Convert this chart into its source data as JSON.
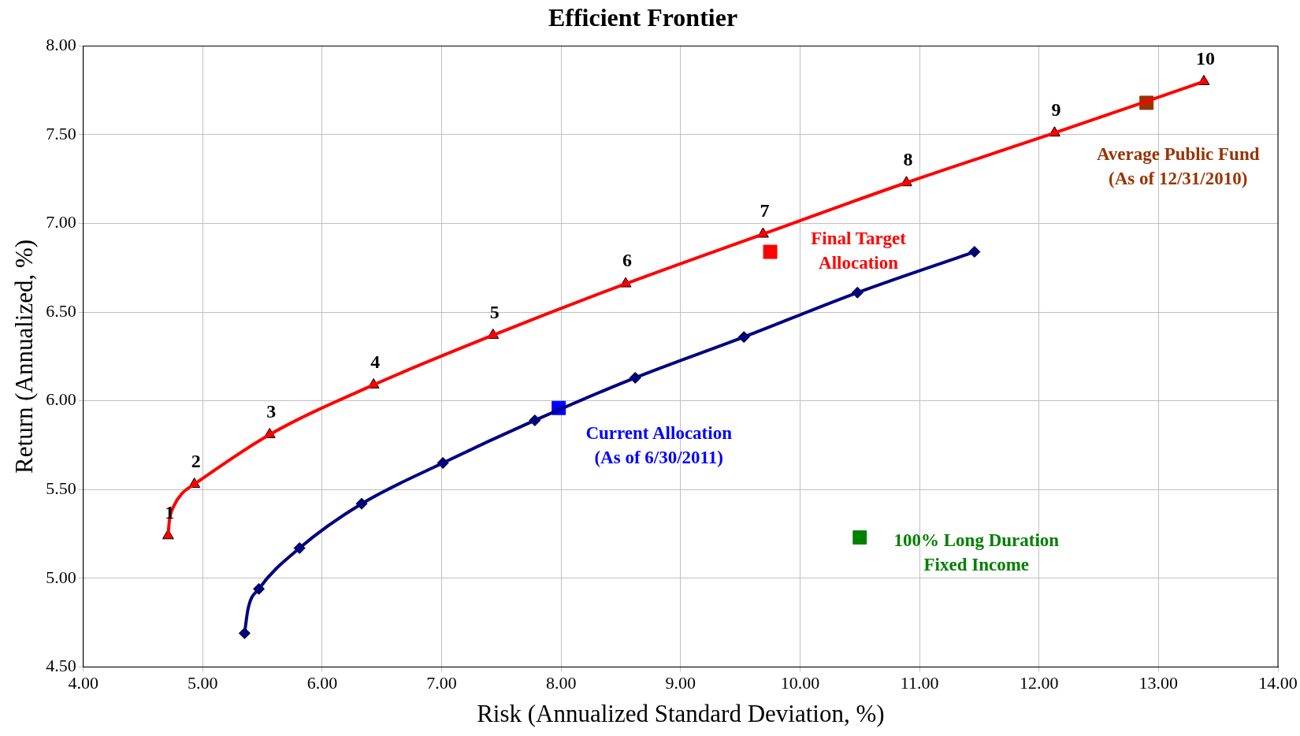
{
  "chart_data": {
    "type": "line",
    "title": "Efficient Frontier",
    "xlabel": "Risk (Annualized Standard Deviation, %)",
    "ylabel": "Return (Annualized, %)",
    "xlim": [
      4,
      14
    ],
    "xticks": [
      {
        "value": 4,
        "label": "4.00"
      },
      {
        "value": 5,
        "label": "5.00"
      },
      {
        "value": 6,
        "label": "6.00"
      },
      {
        "value": 7,
        "label": "7.00"
      },
      {
        "value": 8,
        "label": "8.00"
      },
      {
        "value": 9,
        "label": "9.00"
      },
      {
        "value": 10,
        "label": "10.00"
      },
      {
        "value": 11,
        "label": "11.00"
      },
      {
        "value": 12,
        "label": "12.00"
      },
      {
        "value": 13,
        "label": "13.00"
      },
      {
        "value": 14,
        "label": "14.00"
      }
    ],
    "ylim": [
      4.5,
      8
    ],
    "yticks": [
      {
        "value": 4.5,
        "label": "4.50"
      },
      {
        "value": 5,
        "label": "5.00"
      },
      {
        "value": 5.5,
        "label": "5.50"
      },
      {
        "value": 6,
        "label": "6.00"
      },
      {
        "value": 6.5,
        "label": "6.50"
      },
      {
        "value": 7,
        "label": "7.00"
      },
      {
        "value": 7.5,
        "label": "7.50"
      },
      {
        "value": 8,
        "label": "8.00"
      }
    ],
    "grid": true,
    "legend": false,
    "line_style": "solid",
    "annotations": [
      {
        "text": "1",
        "x": 4.71,
        "y": 5.24
      },
      {
        "text": "2",
        "x": 4.93,
        "y": 5.53
      },
      {
        "text": "3",
        "x": 5.56,
        "y": 5.81
      },
      {
        "text": "4",
        "x": 6.43,
        "y": 6.09
      },
      {
        "text": "5",
        "x": 7.43,
        "y": 6.37
      },
      {
        "text": "6",
        "x": 8.54,
        "y": 6.66
      },
      {
        "text": "7",
        "x": 9.69,
        "y": 6.94
      },
      {
        "text": "8",
        "x": 10.89,
        "y": 7.23
      },
      {
        "text": "9",
        "x": 12.13,
        "y": 7.51
      },
      {
        "text": "10",
        "x": 13.38,
        "y": 7.8
      }
    ],
    "series": [
      {
        "type": "line",
        "marker": "none",
        "color": "#ff0000",
        "x": [
          4.71,
          4.72,
          4.76,
          4.83,
          4.93,
          5.56,
          6.43,
          7.43,
          8.54,
          9.69,
          10.89,
          12.13,
          13.38
        ],
        "values": [
          5.24,
          5.32,
          5.41,
          5.48,
          5.53,
          5.81,
          6.09,
          6.37,
          6.66,
          6.94,
          7.23,
          7.51,
          7.8
        ]
      },
      {
        "type": "scatter",
        "marker": "triangle",
        "color": "#ff0000",
        "x": [
          4.71,
          4.93,
          5.56,
          6.43,
          7.43,
          8.54,
          9.69,
          10.89,
          12.13,
          13.38
        ],
        "values": [
          5.24,
          5.53,
          5.81,
          6.09,
          6.37,
          6.66,
          6.94,
          7.23,
          7.51,
          7.8
        ]
      },
      {
        "type": "line",
        "marker": "none",
        "color": "#000080",
        "x": [
          5.35,
          5.38,
          5.47,
          5.81,
          6.33,
          7.01,
          7.78,
          8.62,
          9.53,
          10.48,
          11.46
        ],
        "values": [
          4.69,
          4.83,
          4.94,
          5.17,
          5.42,
          5.65,
          5.89,
          6.13,
          6.36,
          6.61,
          6.84
        ]
      },
      {
        "type": "scatter",
        "marker": "diamond",
        "color": "#000080",
        "x": [
          5.35,
          5.47,
          5.81,
          6.33,
          7.01,
          7.78,
          8.62,
          9.53,
          10.48,
          11.46
        ],
        "values": [
          4.69,
          4.94,
          5.17,
          5.42,
          5.65,
          5.89,
          6.13,
          6.36,
          6.61,
          6.84
        ]
      },
      {
        "type": "scatter",
        "marker": "square",
        "name": "Final Target\nAllocation",
        "color": "#ff0000",
        "x": [
          9.75
        ],
        "values": [
          6.84
        ]
      },
      {
        "type": "scatter",
        "marker": "square",
        "name": "Current Allocation\n(As of 6/30/2011)",
        "color": "#0000ff",
        "x": [
          7.98
        ],
        "values": [
          5.96
        ]
      },
      {
        "type": "scatter",
        "marker": "square",
        "name": "Average Public Fund\n(As of 12/31/2010)",
        "color": "#993300",
        "x": [
          12.9
        ],
        "values": [
          7.68
        ]
      },
      {
        "type": "scatter",
        "marker": "square",
        "name": "100% Long Duration\nFixed Income",
        "color": "#008000",
        "x": [
          10.5
        ],
        "values": [
          5.23
        ]
      }
    ]
  }
}
